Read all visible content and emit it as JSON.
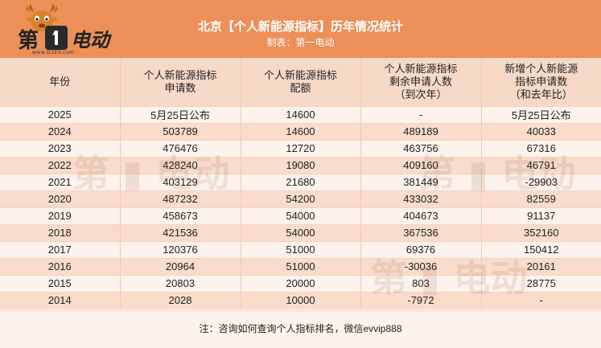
{
  "header": {
    "title": "北京【个人新能源指标】历年情况统计",
    "subtitle": "制表：第一电动"
  },
  "logo": {
    "text_left": "第",
    "text_right": "电动",
    "url": "www.D1EV.com"
  },
  "table": {
    "columns": [
      "年份",
      "个人新能源指标\n申请数",
      "个人新能源指标\n配额",
      "个人新能源指标\n剩余申请人数\n（到次年）",
      "新增个人新能源\n指标申请数\n（和去年比）"
    ],
    "rows": [
      [
        "2025",
        "5月25日公布",
        "14600",
        "-",
        "5月25日公布"
      ],
      [
        "2024",
        "503789",
        "14600",
        "489189",
        "40033"
      ],
      [
        "2023",
        "476476",
        "12720",
        "463756",
        "67316"
      ],
      [
        "2022",
        "428240",
        "19080",
        "409160",
        "46791"
      ],
      [
        "2021",
        "403129",
        "21680",
        "381449",
        "-29903"
      ],
      [
        "2020",
        "487232",
        "54200",
        "433032",
        "82559"
      ],
      [
        "2019",
        "458673",
        "54000",
        "404673",
        "91137"
      ],
      [
        "2018",
        "421536",
        "54000",
        "367536",
        "352160"
      ],
      [
        "2017",
        "120376",
        "51000",
        "69376",
        "150412"
      ],
      [
        "2016",
        "20964",
        "51000",
        "-30036",
        "20161"
      ],
      [
        "2015",
        "20803",
        "20000",
        "803",
        "28775"
      ],
      [
        "2014",
        "2028",
        "10000",
        "-7972",
        "-"
      ]
    ]
  },
  "note": "注：咨询如何查询个人指标排名，微信evvip888",
  "colors": {
    "header_bg": "#ec8f58",
    "row_light": "#fdf2ec",
    "row_dark": "#f9dccb"
  }
}
